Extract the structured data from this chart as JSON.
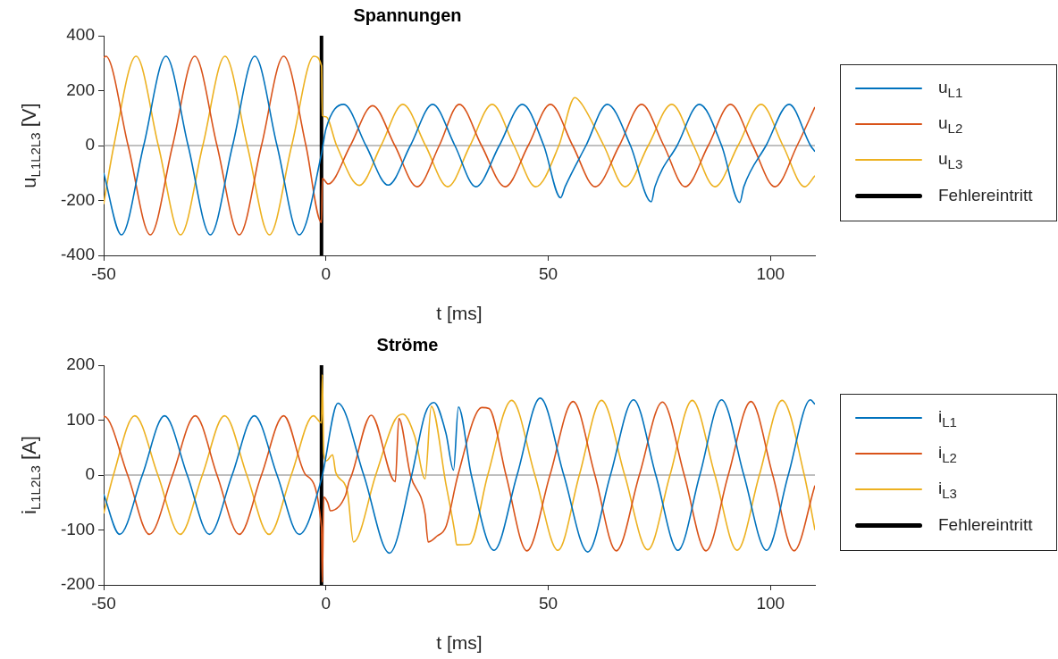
{
  "chart_data": [
    {
      "type": "line",
      "title": "Spannungen",
      "xlabel": "t [ms]",
      "ylabel": "u$_{L1L2L3}$ [V]",
      "xlim": [
        -50,
        110
      ],
      "xticks": [
        -50,
        0,
        50,
        100
      ],
      "ylim": [
        -400,
        400
      ],
      "yticks": [
        -400,
        -200,
        0,
        200,
        400
      ],
      "legend": "right",
      "marker": "none",
      "line_style": "solid",
      "grid": false,
      "series": [
        {
          "name": "u$_{L1}$",
          "color": "#0072bd",
          "x": [
            -50,
            -46,
            -41,
            -36,
            -31,
            -26,
            -21,
            -16,
            -11,
            -6,
            -1,
            0,
            4,
            9,
            14,
            19,
            24,
            29,
            33.7,
            39,
            44.2,
            49,
            52.8,
            53.8,
            58.5,
            63.3,
            68.5,
            73.2,
            74,
            79,
            84,
            89,
            93.1,
            94,
            99,
            104.2,
            109,
            110
          ],
          "values": [
            -100,
            -325,
            0,
            325,
            0,
            -325,
            0,
            325,
            0,
            -325,
            -30,
            60,
            150,
            0,
            -144,
            0,
            150,
            0,
            -150,
            0,
            150,
            0,
            -190,
            -150,
            0,
            150,
            0,
            -205,
            -150,
            0,
            150,
            0,
            -207,
            -150,
            0,
            150,
            0,
            -22
          ]
        },
        {
          "name": "u$_{L2}$",
          "color": "#d95319",
          "x": [
            -50,
            -49.5,
            -44.5,
            -39.5,
            -34.5,
            -29.5,
            -24.5,
            -19.5,
            -14.5,
            -9.5,
            -4.5,
            -1,
            -0.8,
            0.5,
            5.5,
            10.5,
            15.5,
            20.5,
            25.5,
            30,
            35,
            40.3,
            45.5,
            50.5,
            55.5,
            60.6,
            66,
            71,
            76,
            80.8,
            86,
            91,
            96,
            101,
            106,
            110
          ],
          "values": [
            320,
            325,
            0,
            -325,
            0,
            325,
            0,
            -325,
            0,
            325,
            0,
            -280,
            -120,
            -140,
            0,
            145,
            0,
            -150,
            0,
            150,
            0,
            -150,
            0,
            150,
            0,
            -150,
            0,
            150,
            0,
            -150,
            0,
            150,
            0,
            -150,
            0,
            140
          ]
        },
        {
          "name": "u$_{L3}$",
          "color": "#edb120",
          "x": [
            -50,
            -47.7,
            -42.7,
            -37.7,
            -32.7,
            -27.7,
            -22.7,
            -17.7,
            -12.7,
            -7.7,
            -2.7,
            -1,
            -0.8,
            0,
            2.4,
            7.5,
            12.4,
            17.3,
            22.4,
            27.4,
            32.4,
            37.4,
            42.3,
            47.2,
            52.4,
            56,
            57.6,
            62.5,
            67.3,
            72.5,
            77.8,
            82.7,
            87.5,
            92.7,
            97.9,
            102.8,
            107.7,
            110
          ],
          "values": [
            -213,
            0,
            325,
            0,
            -325,
            0,
            325,
            0,
            -325,
            0,
            325,
            290,
            110,
            105,
            0,
            -145,
            0,
            150,
            0,
            -150,
            0,
            150,
            0,
            -150,
            0,
            175,
            150,
            0,
            -150,
            0,
            150,
            0,
            -150,
            0,
            150,
            0,
            -150,
            -110
          ]
        },
        {
          "name": "Fehlereintritt",
          "color": "#000000",
          "x": [
            -1,
            -1
          ],
          "values": [
            -400,
            400
          ]
        }
      ],
      "ref_lines": [
        {
          "axis": "y",
          "value": 0,
          "color": "#808080"
        }
      ]
    },
    {
      "type": "line",
      "title": "Ströme",
      "xlabel": "t [ms]",
      "ylabel": "i$_{L1L2L3}$ [A]",
      "xlim": [
        -50,
        110
      ],
      "xticks": [
        -50,
        0,
        50,
        100
      ],
      "ylim": [
        -200,
        200
      ],
      "yticks": [
        -200,
        -100,
        0,
        100,
        200
      ],
      "legend": "right",
      "marker": "none",
      "line_style": "solid",
      "grid": false,
      "series": [
        {
          "name": "i$_{L1}$",
          "color": "#0072bd",
          "x": [
            -50,
            -46.4,
            -41.3,
            -36.3,
            -31.2,
            -26.2,
            -21.1,
            -16.1,
            -11,
            -6,
            -1,
            2.7,
            8.5,
            14.3,
            19.3,
            22.3,
            24.3,
            27,
            28.7,
            29.8,
            32.7,
            37.8,
            43,
            48.2,
            53.5,
            58.9,
            64,
            69.2,
            74.2,
            79.2,
            84.1,
            89,
            94,
            99.1,
            104,
            109,
            110
          ],
          "values": [
            -35,
            -108,
            0,
            108,
            0,
            -108,
            0,
            108,
            0,
            -108,
            -7,
            131,
            0,
            -142,
            0,
            111,
            132,
            76,
            9,
            124,
            0,
            -137,
            0,
            140,
            0,
            -140,
            0,
            137,
            0,
            -137,
            0,
            137,
            0,
            -137,
            0,
            137,
            129
          ]
        },
        {
          "name": "i$_{L2}$",
          "color": "#d95319",
          "x": [
            -50,
            -49.9,
            -44.6,
            -39.7,
            -34.5,
            -29.4,
            -24.5,
            -19.5,
            -14.5,
            -9.5,
            -4.5,
            -1,
            -0.8,
            -0.5,
            0.4,
            1,
            4.4,
            5.2,
            5.8,
            10.2,
            15.6,
            16.4,
            19,
            22.3,
            23,
            25,
            27,
            29.7,
            35.1,
            36.7,
            40.5,
            45.2,
            50.4,
            55.6,
            60.5,
            65.3,
            70.5,
            75.7,
            80.6,
            85.5,
            90.5,
            95.6,
            100.5,
            105.3,
            110
          ],
          "values": [
            105,
            107,
            0,
            -108,
            0,
            108,
            0,
            -108,
            0,
            108,
            0,
            -95,
            -195,
            -40,
            -50,
            -65,
            -37,
            -12,
            0,
            109,
            -12,
            103,
            0,
            -71,
            -122,
            -111,
            -94,
            0,
            123,
            121,
            0,
            -138,
            0,
            134,
            0,
            -138,
            0,
            133,
            0,
            -138,
            0,
            134,
            0,
            -138,
            -19
          ]
        },
        {
          "name": "i$_{L3}$",
          "color": "#edb120",
          "x": [
            -50,
            -47.8,
            -43,
            -37.8,
            -32.8,
            -27.8,
            -22.8,
            -17.8,
            -12.8,
            -7.8,
            -2.8,
            -1,
            -0.8,
            -0.5,
            0.1,
            1.5,
            2.2,
            4.8,
            6.2,
            11.2,
            15.5,
            17.3,
            20,
            22.3,
            23.7,
            27,
            29,
            29.4,
            32.3,
            36.4,
            41.8,
            47,
            52.2,
            57,
            62,
            67.2,
            72.4,
            77.4,
            82.4,
            87.5,
            92.5,
            97.5,
            102.6,
            107.6,
            110
          ],
          "values": [
            -70,
            0,
            108,
            0,
            -108,
            0,
            108,
            0,
            -108,
            0,
            108,
            95,
            183,
            40,
            26,
            37,
            5,
            -29,
            -122,
            0,
            100,
            111,
            70,
            -7,
            125,
            -17,
            -105,
            -127,
            -126,
            0,
            136,
            0,
            -137,
            0,
            136,
            0,
            -136,
            0,
            136,
            0,
            -137,
            0,
            136,
            0,
            -100
          ]
        },
        {
          "name": "Fehlereintritt",
          "color": "#000000",
          "x": [
            -1,
            -1
          ],
          "values": [
            -200,
            200
          ]
        }
      ],
      "ref_lines": [
        {
          "axis": "y",
          "value": 0,
          "color": "#808080"
        }
      ]
    }
  ]
}
